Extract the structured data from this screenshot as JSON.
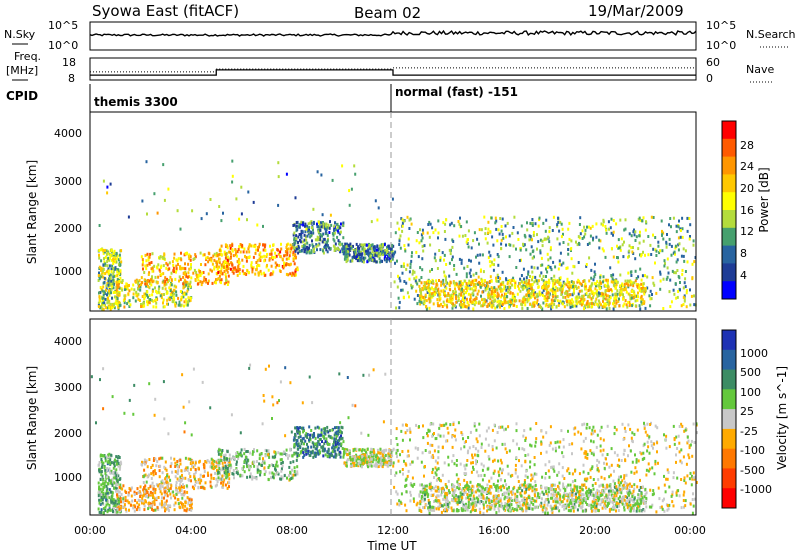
{
  "header": {
    "station": "Syowa East (fitACF)",
    "beam": "Beam 02",
    "date": "19/Mar/2009"
  },
  "sky_panel": {
    "left_label": "N.Sky",
    "right_label": "N.Search",
    "left_ticks": [
      "10^5",
      "10^0"
    ],
    "right_ticks": [
      "10^5",
      "10^0"
    ]
  },
  "freq_panel": {
    "left_label_line1": "Freq.",
    "left_label_line2": "[MHz]",
    "right_label": "Nave",
    "left_ticks": [
      "18",
      "8"
    ],
    "right_ticks": [
      "60",
      "0"
    ],
    "freq_steps": [
      {
        "t_start": 0.0,
        "t_end": 5.0,
        "mhz": 10.2
      },
      {
        "t_start": 5.0,
        "t_end": 12.0,
        "mhz": 12.6
      },
      {
        "t_start": 12.0,
        "t_end": 24.0,
        "mhz": 10.2
      }
    ],
    "nave_steps": [
      {
        "t_start": 0.0,
        "t_end": 5.0,
        "nave": 22
      },
      {
        "t_start": 5.0,
        "t_end": 12.0,
        "nave": 30
      },
      {
        "t_start": 12.0,
        "t_end": 24.0,
        "nave": 33
      }
    ]
  },
  "cpid_panel": {
    "label": "CPID",
    "modes": [
      {
        "name": "themis 3300",
        "t_start": 0.0
      },
      {
        "name": "normal (fast) -151",
        "t_start": 12.0
      }
    ]
  },
  "panels": {
    "power": {
      "ylabel": "Slant Range [km]",
      "yticks": [
        "4000",
        "3000",
        "2000",
        "1000"
      ],
      "colorbar_label": "Power [dB]",
      "colorbar_ticks": [
        "28",
        "24",
        "20",
        "16",
        "12",
        "8",
        "4"
      ],
      "colorbar_colors": [
        "#ff0000",
        "#ff5a00",
        "#ff9600",
        "#ffc800",
        "#ffff00",
        "#b4dc3c",
        "#46a06e",
        "#2864a0",
        "#1e3c96",
        "#0000ff"
      ]
    },
    "velocity": {
      "ylabel": "Slant Range [km]",
      "yticks": [
        "4000",
        "3000",
        "2000",
        "1000"
      ],
      "colorbar_label": "Velocity [m s^-1]",
      "colorbar_ticks": [
        "1000",
        "500",
        "100",
        "25",
        "-25",
        "-100",
        "-500",
        "-1000"
      ],
      "colorbar_colors": [
        "#1e32b4",
        "#2864a0",
        "#3c8c64",
        "#64c83c",
        "#c8c8c8",
        "#ffaa00",
        "#ff7800",
        "#ff3c00",
        "#ff0000"
      ]
    }
  },
  "x_axis": {
    "label": "Time UT",
    "ticks": [
      "00:00",
      "04:00",
      "08:00",
      "12:00",
      "16:00",
      "20:00",
      "00:00"
    ]
  },
  "chart_data": {
    "type": "heatmap",
    "title": "Syowa East (fitACF)  Beam 02  19/Mar/2009",
    "xlabel": "Time UT",
    "ylabel": "Slant Range [km]",
    "xlim": [
      0,
      24
    ],
    "ylim": [
      180,
      4600
    ],
    "grid": false,
    "panels": [
      {
        "name": "Power",
        "units": "dB",
        "scale": [
          0,
          30
        ]
      },
      {
        "name": "Velocity",
        "units": "m s^-1",
        "scale": [
          -1000,
          1000
        ]
      }
    ],
    "echo_regions": [
      {
        "t": [
          0.3,
          1.2
        ],
        "range_km": [
          250,
          1600
        ],
        "power_db": 14,
        "velocity": 300
      },
      {
        "t": [
          1.0,
          4.0
        ],
        "range_km": [
          300,
          900
        ],
        "power_db": 16,
        "velocity": -200
      },
      {
        "t": [
          2.0,
          5.5
        ],
        "range_km": [
          800,
          1500
        ],
        "power_db": 20,
        "velocity": -150
      },
      {
        "t": [
          5.0,
          8.2
        ],
        "range_km": [
          1000,
          1700
        ],
        "power_db": 22,
        "velocity": 200
      },
      {
        "t": [
          8.0,
          10.0
        ],
        "range_km": [
          1500,
          2200
        ],
        "power_db": 8,
        "velocity": 600
      },
      {
        "t": [
          10.0,
          12.0
        ],
        "range_km": [
          1300,
          1700
        ],
        "power_db": 8,
        "velocity": 20
      },
      {
        "t": [
          12.0,
          24.0
        ],
        "range_km": [
          250,
          2300
        ],
        "power_db": 12,
        "velocity": 0
      },
      {
        "t": [
          13.0,
          22.0
        ],
        "range_km": [
          300,
          900
        ],
        "power_db": 18,
        "velocity": 80
      }
    ]
  }
}
